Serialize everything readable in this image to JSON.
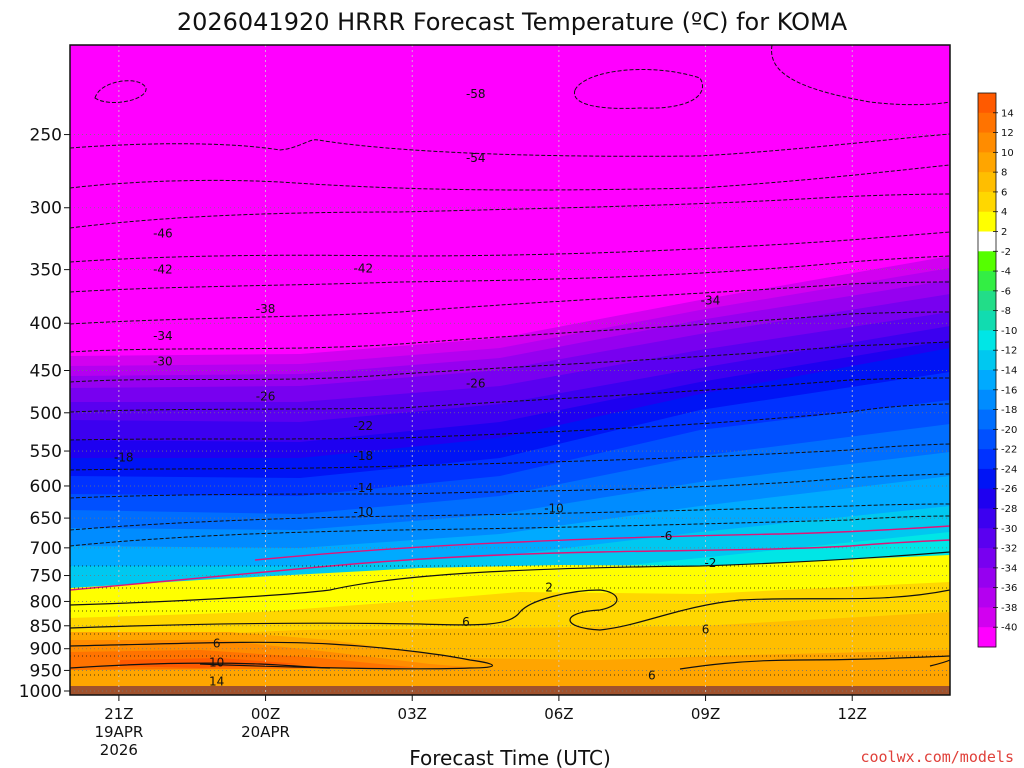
{
  "chart_data": {
    "type": "heatmap",
    "title": "2026041920 HRRR Forecast Temperature (ºC) for KOMA",
    "xlabel": "Forecast Time (UTC)",
    "credit": "coolwx.com/models",
    "y_scale": "log-pressure",
    "y_inverted": true,
    "ylim": [
      1010,
      200
    ],
    "y_ticks": [
      250,
      300,
      350,
      400,
      450,
      500,
      550,
      600,
      650,
      700,
      750,
      800,
      850,
      900,
      950,
      1000
    ],
    "x_ticks": [
      {
        "label": "21Z",
        "sub1": "19APR",
        "sub2": "2026"
      },
      {
        "label": "00Z",
        "sub1": "20APR",
        "sub2": ""
      },
      {
        "label": "03Z",
        "sub1": "",
        "sub2": ""
      },
      {
        "label": "06Z",
        "sub1": "",
        "sub2": ""
      },
      {
        "label": "09Z",
        "sub1": "",
        "sub2": ""
      },
      {
        "label": "12Z",
        "sub1": "",
        "sub2": ""
      }
    ],
    "x_hours": [
      0,
      3,
      6,
      9,
      12,
      15
    ],
    "x_range_hours": [
      -1,
      17
    ],
    "grid": true,
    "colorbar": {
      "labels": [
        "14",
        "12",
        "10",
        "8",
        "6",
        "4",
        "2",
        "-2",
        "-4",
        "-6",
        "-8",
        "-10",
        "-12",
        "-14",
        "-16",
        "-18",
        "-20",
        "-22",
        "-24",
        "-26",
        "-28",
        "-30",
        "-32",
        "-34",
        "-36",
        "-38",
        "-40"
      ],
      "colors": [
        "#ff5a00",
        "#ff7300",
        "#ff8c00",
        "#ffa500",
        "#ffbe00",
        "#ffd700",
        "#ffff00",
        "#ffffff",
        "#55ff00",
        "#33ee44",
        "#22dd88",
        "#11dcb0",
        "#00e6e6",
        "#00c8f0",
        "#00aaff",
        "#008cff",
        "#006eff",
        "#0050ff",
        "#0032ff",
        "#0014f5",
        "#1e00f0",
        "#3c00f0",
        "#5a00f0",
        "#7800f0",
        "#9600f0",
        "#b400f0",
        "#d200f0",
        "#ff00ff"
      ]
    },
    "ground_color": "#a0522d",
    "contour_labels": [
      {
        "v": "-58",
        "x": 7.3,
        "p": 226
      },
      {
        "v": "-54",
        "x": 7.3,
        "p": 265
      },
      {
        "v": "-46",
        "x": 0.9,
        "p": 320
      },
      {
        "v": "-42",
        "x": 0.9,
        "p": 350
      },
      {
        "v": "-42",
        "x": 5.0,
        "p": 349
      },
      {
        "v": "-38",
        "x": 3.0,
        "p": 386
      },
      {
        "v": "-34",
        "x": 0.9,
        "p": 413
      },
      {
        "v": "-34",
        "x": 12.1,
        "p": 378
      },
      {
        "v": "-30",
        "x": 0.9,
        "p": 440
      },
      {
        "v": "-26",
        "x": 3.0,
        "p": 480
      },
      {
        "v": "-26",
        "x": 7.3,
        "p": 465
      },
      {
        "v": "-22",
        "x": 5.0,
        "p": 517
      },
      {
        "v": "-18",
        "x": 0.1,
        "p": 559
      },
      {
        "v": "-18",
        "x": 5.0,
        "p": 557
      },
      {
        "v": "-14",
        "x": 5.0,
        "p": 603
      },
      {
        "v": "-10",
        "x": 5.0,
        "p": 640
      },
      {
        "v": "-10",
        "x": 8.9,
        "p": 635
      },
      {
        "v": "-6",
        "x": 11.2,
        "p": 680
      },
      {
        "v": "-2",
        "x": 12.1,
        "p": 727
      },
      {
        "v": "2",
        "x": 8.8,
        "p": 773
      },
      {
        "v": "6",
        "x": 7.1,
        "p": 842
      },
      {
        "v": "6",
        "x": 12.0,
        "p": 858
      },
      {
        "v": "6",
        "x": 2.0,
        "p": 888
      },
      {
        "v": "6",
        "x": 10.9,
        "p": 962
      },
      {
        "v": "10",
        "x": 2.0,
        "p": 931
      },
      {
        "v": "14",
        "x": 2.0,
        "p": 977
      }
    ]
  }
}
